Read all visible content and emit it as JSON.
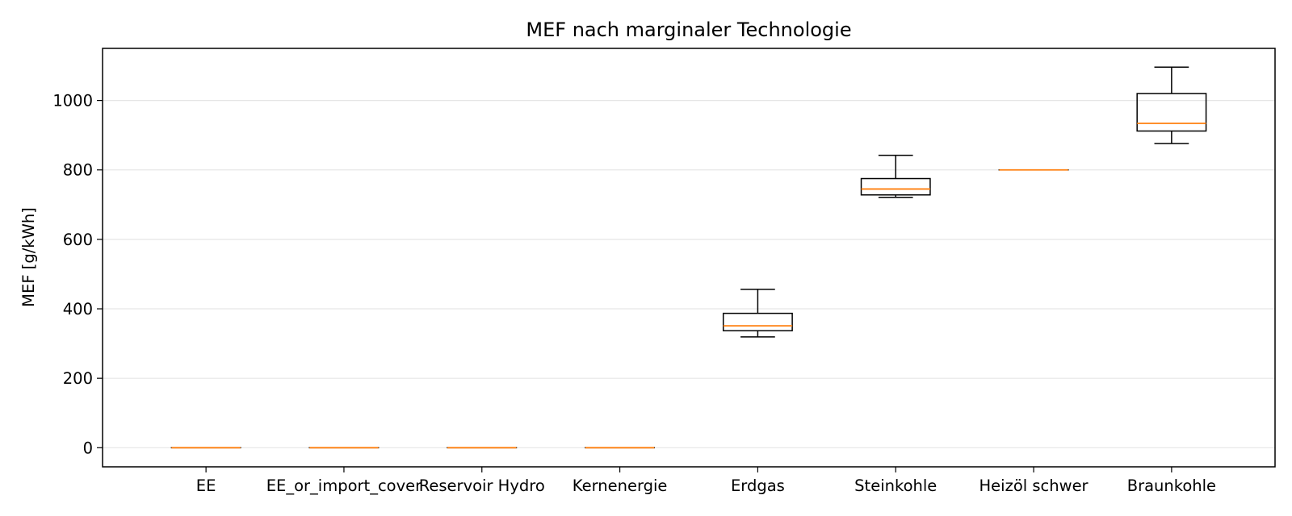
{
  "chart_data": {
    "type": "boxplot",
    "title": "MEF nach marginaler Technologie",
    "xlabel": "",
    "ylabel": "MEF [g/kWh]",
    "ylim": [
      -55,
      1150
    ],
    "yticks": [
      0,
      200,
      400,
      600,
      800,
      1000
    ],
    "grid": "horizontal",
    "categories": [
      "EE",
      "EE_or_import_cover",
      "Reservoir Hydro",
      "Kernenergie",
      "Erdgas",
      "Steinkohle",
      "Heizöl schwer",
      "Braunkohle"
    ],
    "boxes": [
      {
        "whisker_low": 0,
        "q1": 0,
        "median": 0,
        "q3": 0,
        "whisker_high": 0
      },
      {
        "whisker_low": 0,
        "q1": 0,
        "median": 0,
        "q3": 0,
        "whisker_high": 0
      },
      {
        "whisker_low": 0,
        "q1": 0,
        "median": 0,
        "q3": 0,
        "whisker_high": 0
      },
      {
        "whisker_low": 0,
        "q1": 0,
        "median": 0,
        "q3": 0,
        "whisker_high": 0
      },
      {
        "whisker_low": 319,
        "q1": 337,
        "median": 351,
        "q3": 387,
        "whisker_high": 456
      },
      {
        "whisker_low": 721,
        "q1": 728,
        "median": 745,
        "q3": 775,
        "whisker_high": 842
      },
      {
        "whisker_low": 800,
        "q1": 800,
        "median": 800,
        "q3": 800,
        "whisker_high": 800
      },
      {
        "whisker_low": 876,
        "q1": 912,
        "median": 934,
        "q3": 1020,
        "whisker_high": 1096
      }
    ],
    "colors": {
      "box": "#000000",
      "median": "#ff7f0e",
      "grid": "#e6e6e6"
    }
  }
}
